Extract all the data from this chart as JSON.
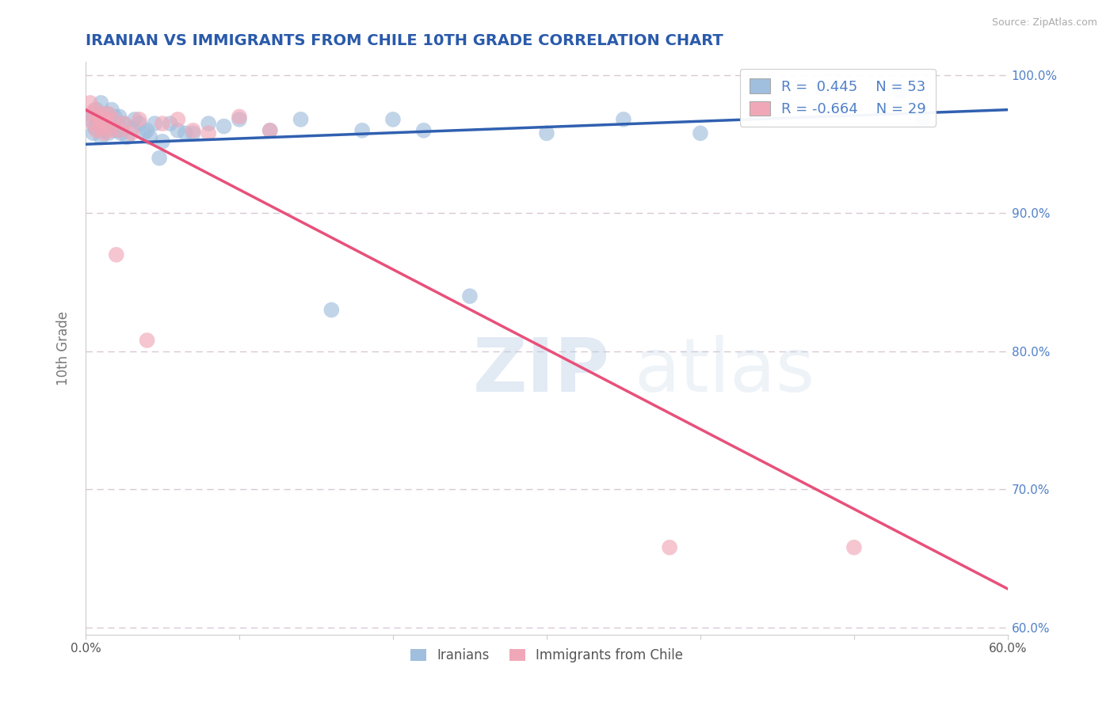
{
  "title": "IRANIAN VS IMMIGRANTS FROM CHILE 10TH GRADE CORRELATION CHART",
  "source": "Source: ZipAtlas.com",
  "ylabel": "10th Grade",
  "xlim": [
    0.0,
    0.6
  ],
  "ylim": [
    0.595,
    1.01
  ],
  "xticks": [
    0.0,
    0.1,
    0.2,
    0.3,
    0.4,
    0.5,
    0.6
  ],
  "xticklabels": [
    "0.0%",
    "",
    "",
    "",
    "",
    "",
    "60.0%"
  ],
  "yticks": [
    0.6,
    0.7,
    0.8,
    0.9,
    1.0
  ],
  "yticklabels_right": [
    "60.0%",
    "70.0%",
    "80.0%",
    "90.0%",
    "100.0%"
  ],
  "blue_color": "#a0bedd",
  "pink_color": "#f0a8b8",
  "blue_line_color": "#3060b0",
  "pink_line_color": "#e8507a",
  "R_blue": 0.445,
  "N_blue": 53,
  "R_pink": -0.664,
  "N_pink": 29,
  "legend_label_blue": "Iranians",
  "legend_label_pink": "Immigrants from Chile",
  "watermark_zip": "ZIP",
  "watermark_atlas": "atlas",
  "grid_color": "#d8c8d4",
  "title_color": "#2a5aaa",
  "tick_color_right": "#5080c8",
  "blue_scatter_x": [
    0.003,
    0.004,
    0.005,
    0.006,
    0.007,
    0.008,
    0.009,
    0.01,
    0.01,
    0.011,
    0.012,
    0.013,
    0.014,
    0.015,
    0.016,
    0.017,
    0.018,
    0.019,
    0.02,
    0.021,
    0.022,
    0.023,
    0.025,
    0.027,
    0.03,
    0.032,
    0.035,
    0.038,
    0.04,
    0.042,
    0.045,
    0.048,
    0.05,
    0.055,
    0.06,
    0.065,
    0.07,
    0.08,
    0.09,
    0.1,
    0.12,
    0.14,
    0.16,
    0.18,
    0.2,
    0.22,
    0.25,
    0.3,
    0.35,
    0.4,
    0.48,
    0.53,
    0.545
  ],
  "blue_scatter_y": [
    0.968,
    0.972,
    0.958,
    0.962,
    0.975,
    0.965,
    0.97,
    0.955,
    0.98,
    0.96,
    0.97,
    0.965,
    0.972,
    0.958,
    0.968,
    0.975,
    0.963,
    0.97,
    0.96,
    0.965,
    0.97,
    0.958,
    0.965,
    0.955,
    0.962,
    0.968,
    0.965,
    0.958,
    0.96,
    0.955,
    0.965,
    0.94,
    0.952,
    0.965,
    0.96,
    0.958,
    0.958,
    0.965,
    0.963,
    0.968,
    0.96,
    0.968,
    0.83,
    0.96,
    0.968,
    0.96,
    0.84,
    0.958,
    0.968,
    0.958,
    0.99,
    0.988,
    0.968
  ],
  "pink_scatter_x": [
    0.003,
    0.004,
    0.005,
    0.006,
    0.007,
    0.008,
    0.009,
    0.01,
    0.011,
    0.012,
    0.013,
    0.014,
    0.015,
    0.016,
    0.018,
    0.02,
    0.022,
    0.025,
    0.03,
    0.035,
    0.04,
    0.05,
    0.06,
    0.07,
    0.08,
    0.1,
    0.12,
    0.38,
    0.5
  ],
  "pink_scatter_y": [
    0.98,
    0.972,
    0.965,
    0.975,
    0.96,
    0.97,
    0.968,
    0.962,
    0.972,
    0.958,
    0.968,
    0.965,
    0.972,
    0.96,
    0.968,
    0.87,
    0.96,
    0.965,
    0.958,
    0.968,
    0.808,
    0.965,
    0.968,
    0.96,
    0.958,
    0.97,
    0.96,
    0.658,
    0.658
  ],
  "blue_line_x": [
    0.0,
    0.6
  ],
  "blue_line_y": [
    0.95,
    0.975
  ],
  "pink_line_x": [
    0.0,
    0.6
  ],
  "pink_line_y": [
    0.975,
    0.628
  ]
}
